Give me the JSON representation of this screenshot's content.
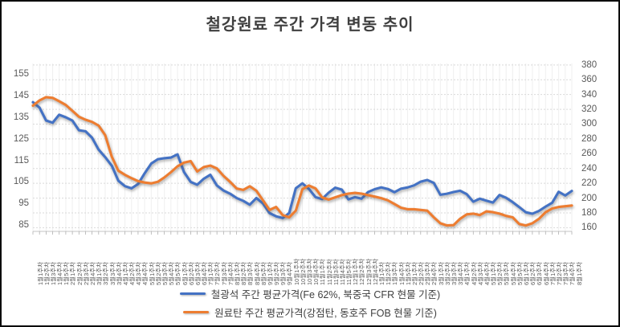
{
  "title": "철강원료 주간 가격 변동 추이",
  "colors": {
    "series_iron_ore": "#4472C4",
    "series_coking_coal": "#ED7D31",
    "gridline": "#D9D9D9",
    "vertical_gridline": "#EFEFEF",
    "axis_line": "#C6C6C6",
    "tick_mark": "#A6A6A6",
    "axis_text": "#595959",
    "title_text": "#3F3F3F"
  },
  "legend": [
    {
      "label": "철광석 주간 평균가격(Fe 62%, 북중국 CFR 현물 기준)",
      "color": "#4472C4"
    },
    {
      "label": "원료탄 주간 평균가격(강점탄, 동호주 FOB 현물 기준)",
      "color": "#ED7D31"
    }
  ],
  "chart_data": {
    "type": "line",
    "left_axis": {
      "ticks": [
        155,
        145,
        135,
        125,
        115,
        105,
        95,
        85
      ],
      "range": [
        82,
        160
      ]
    },
    "right_axis": {
      "ticks": [
        380,
        360,
        340,
        320,
        300,
        280,
        260,
        240,
        220,
        200,
        180,
        160
      ],
      "range": [
        155,
        382
      ]
    },
    "grid": "horizontal-dashed-plus-category-vertical",
    "legend_position": "bottom",
    "x_labels": [
      "1월1주차",
      "1월2주차",
      "1월3주차",
      "1월4주차",
      "1월5주차",
      "2월1주차",
      "2월2주차",
      "2월3주차",
      "2월4주차",
      "3월1주차",
      "3월2주차",
      "3월3주차",
      "3월4주차",
      "4월1주차",
      "4월2주차",
      "4월3주차",
      "4월4주차",
      "5월1주차",
      "5월2주차",
      "5월3주차",
      "5월4주차",
      "5월5주차",
      "6월1주차",
      "6월2주차",
      "6월3주차",
      "6월4주차",
      "7월1주차",
      "7월2주차",
      "7월3주차",
      "7월4주차",
      "8월1주차",
      "8월2주차",
      "8월3주차",
      "8월4주차",
      "8월5주차",
      "9월1주차",
      "9월2주차",
      "9월3주차",
      "9월4주차",
      "10월1주차",
      "10월2주차",
      "10월3주차",
      "10월4주차",
      "11월1주차",
      "11월2주차",
      "11월3주차",
      "11월4주차",
      "11월5주차",
      "12월1주차",
      "12월2주차",
      "12월3주차",
      "12월4주차",
      "1월1주차",
      "1월2주차",
      "1월3주차",
      "1월4주차",
      "1월5주차",
      "2월1주차",
      "2월2주차",
      "2월3주차",
      "2월4주차",
      "3월1주차",
      "3월2주차",
      "3월3주차",
      "3월4주차",
      "4월1주차",
      "4월2주차",
      "4월3주차",
      "4월4주차",
      "5월1주차",
      "5월2주차",
      "5월3주차",
      "5월4주차",
      "5월5주차",
      "6월1주차",
      "6월2주차",
      "6월3주차",
      "6월4주차",
      "7월1주차",
      "7월2주차",
      "7월3주차",
      "7월4주차",
      "8월1주차"
    ],
    "series": [
      {
        "name": "철광석 주간 평균가격(Fe 62%, 북중국 CFR 현물 기준)",
        "axis": "left",
        "color": "#4472C4",
        "values": [
          142,
          139.5,
          133.5,
          132.5,
          136.2,
          135,
          133.5,
          129,
          128.5,
          125.5,
          120,
          116.5,
          112.5,
          105.5,
          103,
          102,
          104,
          109,
          113.5,
          115.5,
          116,
          116.3,
          117.8,
          109.5,
          105,
          103.7,
          106.5,
          108.3,
          103.3,
          101,
          99.5,
          97.5,
          96.2,
          94.4,
          97.5,
          95,
          90.5,
          89,
          88.2,
          90.5,
          102,
          104.3,
          101.7,
          97.9,
          97,
          100,
          102.3,
          101.4,
          96.9,
          97.9,
          97.2,
          100.3,
          101.6,
          102.4,
          101.7,
          100.2,
          101.8,
          102.4,
          103.4,
          105.1,
          105.9,
          104.5,
          99,
          99.5,
          100.3,
          100.9,
          99.3,
          95.8,
          97.2,
          96.3,
          95.4,
          98.9,
          97.6,
          95.6,
          93.3,
          90.9,
          90.2,
          91.5,
          93.5,
          95.3,
          100.4,
          98.7,
          100.8
        ]
      },
      {
        "name": "원료탄 주간 평균가격(강점탄, 동호주 FOB 현물 기준)",
        "axis": "right",
        "color": "#ED7D31",
        "values": [
          325,
          332,
          336.5,
          335.5,
          331,
          326,
          318,
          310,
          306,
          303,
          298,
          285,
          256,
          237,
          231.5,
          227,
          223,
          221,
          220,
          222,
          228,
          235,
          243,
          248,
          250,
          236,
          242,
          244,
          240,
          230,
          222,
          213,
          211,
          216,
          210,
          197,
          184,
          188,
          177,
          174,
          183,
          212,
          217,
          213,
          201,
          198,
          201,
          204,
          206,
          207,
          206,
          204,
          202,
          200,
          197,
          192,
          187,
          185,
          185,
          184,
          183,
          174,
          166,
          163,
          163.5,
          172,
          178,
          179,
          177,
          182,
          181,
          179,
          176,
          174,
          165,
          163,
          166,
          172,
          181,
          186,
          188,
          189,
          190
        ]
      }
    ]
  }
}
